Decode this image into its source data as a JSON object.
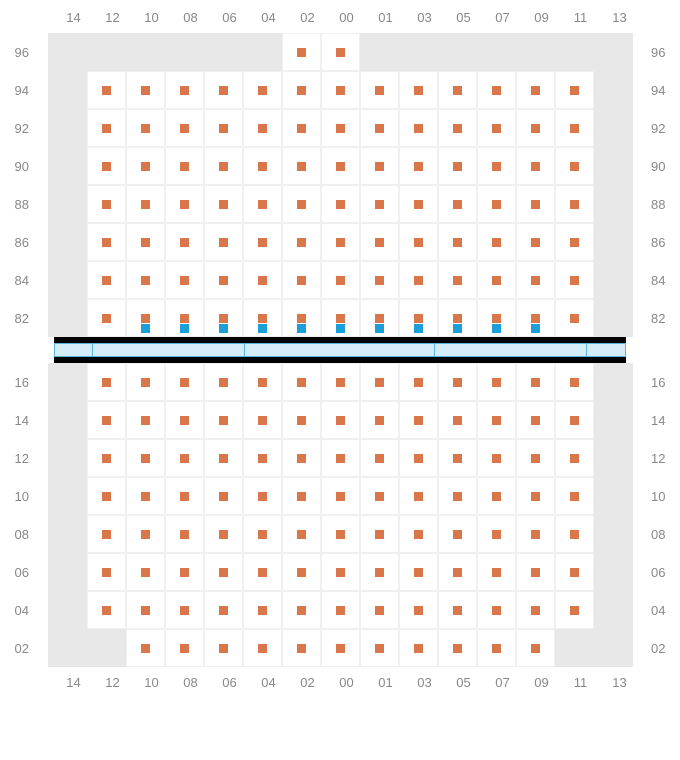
{
  "columns": [
    "14",
    "12",
    "10",
    "08",
    "06",
    "04",
    "02",
    "00",
    "01",
    "03",
    "05",
    "07",
    "09",
    "11",
    "13"
  ],
  "upper": {
    "rows": [
      "96",
      "94",
      "92",
      "90",
      "88",
      "86",
      "84",
      "82"
    ],
    "grid": [
      [
        0,
        0,
        0,
        0,
        0,
        0,
        1,
        1,
        0,
        0,
        0,
        0,
        0,
        0,
        0
      ],
      [
        0,
        1,
        1,
        1,
        1,
        1,
        1,
        1,
        1,
        1,
        1,
        1,
        1,
        1,
        0
      ],
      [
        0,
        1,
        1,
        1,
        1,
        1,
        1,
        1,
        1,
        1,
        1,
        1,
        1,
        1,
        0
      ],
      [
        0,
        1,
        1,
        1,
        1,
        1,
        1,
        1,
        1,
        1,
        1,
        1,
        1,
        1,
        0
      ],
      [
        0,
        1,
        1,
        1,
        1,
        1,
        1,
        1,
        1,
        1,
        1,
        1,
        1,
        1,
        0
      ],
      [
        0,
        1,
        1,
        1,
        1,
        1,
        1,
        1,
        1,
        1,
        1,
        1,
        1,
        1,
        0
      ],
      [
        0,
        1,
        1,
        1,
        1,
        1,
        1,
        1,
        1,
        1,
        1,
        1,
        1,
        1,
        0
      ],
      [
        0,
        1,
        1,
        1,
        1,
        1,
        1,
        1,
        1,
        1,
        1,
        1,
        1,
        1,
        0
      ]
    ],
    "blueRow": [
      0,
      0,
      1,
      1,
      1,
      1,
      1,
      1,
      1,
      1,
      1,
      1,
      1,
      0,
      0
    ]
  },
  "dividerSegments": [
    39,
    156,
    195,
    156,
    39
  ],
  "lower": {
    "rows": [
      "16",
      "14",
      "12",
      "10",
      "08",
      "06",
      "04",
      "02"
    ],
    "grid": [
      [
        0,
        1,
        1,
        1,
        1,
        1,
        1,
        1,
        1,
        1,
        1,
        1,
        1,
        1,
        0
      ],
      [
        0,
        1,
        1,
        1,
        1,
        1,
        1,
        1,
        1,
        1,
        1,
        1,
        1,
        1,
        0
      ],
      [
        0,
        1,
        1,
        1,
        1,
        1,
        1,
        1,
        1,
        1,
        1,
        1,
        1,
        1,
        0
      ],
      [
        0,
        1,
        1,
        1,
        1,
        1,
        1,
        1,
        1,
        1,
        1,
        1,
        1,
        1,
        0
      ],
      [
        0,
        1,
        1,
        1,
        1,
        1,
        1,
        1,
        1,
        1,
        1,
        1,
        1,
        1,
        0
      ],
      [
        0,
        1,
        1,
        1,
        1,
        1,
        1,
        1,
        1,
        1,
        1,
        1,
        1,
        1,
        0
      ],
      [
        0,
        1,
        1,
        1,
        1,
        1,
        1,
        1,
        1,
        1,
        1,
        1,
        1,
        1,
        0
      ],
      [
        0,
        0,
        1,
        1,
        1,
        1,
        1,
        1,
        1,
        1,
        1,
        1,
        1,
        0,
        0
      ]
    ]
  },
  "colors": {
    "orange": "#d9764a",
    "blue": "#1a9fd9",
    "empty": "#e8e8e8",
    "grid": "#f0f0f0",
    "label": "#888888",
    "divBlue": "#d4ecf7",
    "divBorder": "#5bb5d9"
  }
}
